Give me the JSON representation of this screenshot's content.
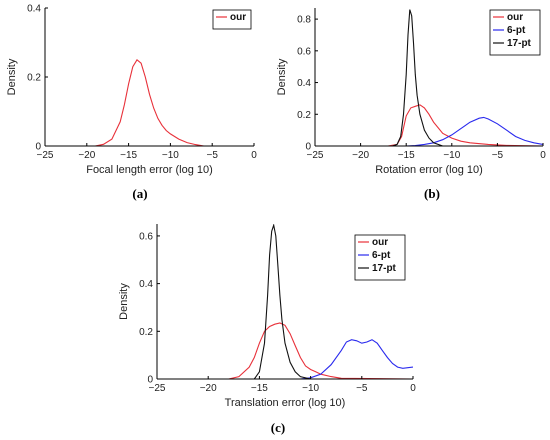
{
  "chart_data": [
    {
      "type": "line",
      "caption": "(a)",
      "xlabel": "Focal length error (log 10)",
      "ylabel": "Density",
      "xlim": [
        -25,
        0
      ],
      "ylim": [
        0,
        0.4
      ],
      "xticks": [
        -25,
        -20,
        -15,
        -10,
        -5,
        0
      ],
      "xtick_labels": [
        "−25",
        "−20",
        "−15",
        "−10",
        "−5",
        "0"
      ],
      "yticks": [
        0,
        0.2,
        0.4
      ],
      "ytick_labels": [
        "0",
        "0.2",
        "0.4"
      ],
      "legend": "top-right",
      "series": [
        {
          "name": "our",
          "color": "#e8313a",
          "style": "solid",
          "x": [
            -25,
            -19,
            -18,
            -17,
            -16,
            -15.5,
            -15,
            -14.5,
            -14,
            -13.5,
            -13,
            -12.5,
            -12,
            -11.5,
            -11,
            -10.5,
            -10,
            -9,
            -8,
            -7,
            -6,
            0
          ],
          "y": [
            0,
            0,
            0.005,
            0.02,
            0.07,
            0.12,
            0.18,
            0.23,
            0.25,
            0.24,
            0.2,
            0.15,
            0.11,
            0.08,
            0.06,
            0.045,
            0.035,
            0.02,
            0.01,
            0.004,
            0,
            0
          ]
        }
      ]
    },
    {
      "type": "line",
      "caption": "(b)",
      "xlabel": "Rotation error (log 10)",
      "ylabel": "Density",
      "xlim": [
        -25,
        0
      ],
      "ylim": [
        0,
        0.87
      ],
      "xticks": [
        -25,
        -20,
        -15,
        -10,
        -5,
        0
      ],
      "xtick_labels": [
        "−25",
        "−20",
        "−15",
        "−10",
        "−5",
        "0"
      ],
      "yticks": [
        0,
        0.2,
        0.4,
        0.6,
        0.8
      ],
      "ytick_labels": [
        "0",
        "0.2",
        "0.4",
        "0.6",
        "0.8"
      ],
      "legend": "top-right",
      "series": [
        {
          "name": "our",
          "color": "#e8313a",
          "style": "solid",
          "x": [
            -25,
            -17,
            -16,
            -15.5,
            -15,
            -14.5,
            -14,
            -13.5,
            -13,
            -12.5,
            -12,
            -11,
            -10,
            -9,
            -8,
            -6,
            -4,
            0
          ],
          "y": [
            0,
            0,
            0.01,
            0.06,
            0.19,
            0.24,
            0.25,
            0.26,
            0.24,
            0.2,
            0.15,
            0.08,
            0.05,
            0.03,
            0.02,
            0.01,
            0.004,
            0
          ]
        },
        {
          "name": "6-pt",
          "color": "#2a2aee",
          "style": "solid",
          "x": [
            -25,
            -15,
            -14,
            -13,
            -12,
            -11,
            -10,
            -9,
            -8,
            -7,
            -6.5,
            -6,
            -5,
            -4,
            -3,
            -2,
            -1,
            0
          ],
          "y": [
            0,
            0,
            0.003,
            0.01,
            0.02,
            0.04,
            0.07,
            0.11,
            0.15,
            0.175,
            0.18,
            0.17,
            0.14,
            0.1,
            0.06,
            0.035,
            0.02,
            0.01
          ]
        },
        {
          "name": "17-pt",
          "color": "#111111",
          "style": "solid",
          "x": [
            -25,
            -16.5,
            -16,
            -15.6,
            -15.3,
            -15,
            -14.8,
            -14.6,
            -14.4,
            -14.2,
            -14,
            -13.8,
            -13.5,
            -13,
            -12.5,
            -12,
            -11,
            0
          ],
          "y": [
            0,
            0,
            0.01,
            0.06,
            0.2,
            0.45,
            0.7,
            0.86,
            0.82,
            0.65,
            0.45,
            0.32,
            0.2,
            0.1,
            0.05,
            0.02,
            0,
            0
          ]
        }
      ]
    },
    {
      "type": "line",
      "caption": "(c)",
      "xlabel": "Translation error (log 10)",
      "ylabel": "Density",
      "xlim": [
        -25,
        0
      ],
      "ylim": [
        0,
        0.65
      ],
      "xticks": [
        -25,
        -20,
        -15,
        -10,
        -5,
        0
      ],
      "xtick_labels": [
        "−25",
        "−20",
        "−15",
        "−10",
        "−5",
        "0"
      ],
      "yticks": [
        0,
        0.2,
        0.4,
        0.6
      ],
      "ytick_labels": [
        "0",
        "0.2",
        "0.4",
        "0.6"
      ],
      "legend": "top-right",
      "series": [
        {
          "name": "our",
          "color": "#e8313a",
          "style": "solid",
          "x": [
            -25,
            -18,
            -17,
            -16,
            -15.5,
            -15,
            -14.5,
            -14,
            -13.5,
            -13,
            -12.5,
            -12,
            -11.5,
            -11,
            -10.5,
            -10,
            -9.5,
            -9,
            -8,
            -7,
            0
          ],
          "y": [
            0,
            0,
            0.01,
            0.05,
            0.09,
            0.15,
            0.2,
            0.22,
            0.23,
            0.235,
            0.225,
            0.19,
            0.14,
            0.09,
            0.055,
            0.04,
            0.03,
            0.02,
            0.01,
            0.003,
            0
          ]
        },
        {
          "name": "6-pt",
          "color": "#2a2aee",
          "style": "solid",
          "x": [
            -25,
            -11,
            -10,
            -9,
            -8,
            -7,
            -6.5,
            -6,
            -5.5,
            -5,
            -4.5,
            -4,
            -3.5,
            -3,
            -2.5,
            -2,
            -1.5,
            -1,
            0
          ],
          "y": [
            0,
            0,
            0.005,
            0.02,
            0.06,
            0.12,
            0.155,
            0.165,
            0.16,
            0.15,
            0.155,
            0.165,
            0.15,
            0.12,
            0.09,
            0.065,
            0.05,
            0.045,
            0.05
          ]
        },
        {
          "name": "17-pt",
          "color": "#111111",
          "style": "solid",
          "x": [
            -25,
            -15.5,
            -15,
            -14.5,
            -14.2,
            -14,
            -13.8,
            -13.6,
            -13.4,
            -13.2,
            -13,
            -12.8,
            -12.5,
            -12,
            -11.5,
            -11,
            -10,
            0
          ],
          "y": [
            0,
            0,
            0.03,
            0.15,
            0.35,
            0.52,
            0.62,
            0.645,
            0.6,
            0.48,
            0.35,
            0.25,
            0.15,
            0.07,
            0.03,
            0.01,
            0,
            0
          ]
        }
      ]
    }
  ]
}
